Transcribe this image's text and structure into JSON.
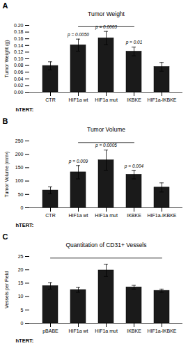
{
  "chart_data": [
    {
      "type": "bar",
      "title": "Tumor Weight",
      "panel_label": "A",
      "ylabel": "Tumor Weight (g)",
      "xlabel": "hTERT:",
      "categories": [
        "CTR",
        "HIF1a wt",
        "HIF1a mut",
        "IKBKE",
        "HIF1a-IKBKE"
      ],
      "values": [
        0.079,
        0.141,
        0.162,
        0.122,
        0.076
      ],
      "errors": [
        0.012,
        0.018,
        0.02,
        0.013,
        0.013
      ],
      "color": "#1a1a1a",
      "ylim": [
        0,
        0.2
      ],
      "yticks": [
        {
          "value": 0.0,
          "label": "0.00"
        },
        {
          "value": 0.02,
          "label": "0.02"
        },
        {
          "value": 0.04,
          "label": "0.04"
        },
        {
          "value": 0.06,
          "label": "0.06"
        },
        {
          "value": 0.08,
          "label": "0.08"
        },
        {
          "value": 0.1,
          "label": "0.10"
        },
        {
          "value": 0.12,
          "label": "0.12"
        },
        {
          "value": 0.14,
          "label": "0.14"
        },
        {
          "value": 0.16,
          "label": "0.16"
        },
        {
          "value": 0.18,
          "label": "0.18"
        },
        {
          "value": 0.2,
          "label": "0.20"
        }
      ],
      "annotations": [
        {
          "text": "p = 0.0050",
          "category": "HIF1a wt",
          "y": 0.165
        },
        {
          "text": "p = 0.0003",
          "category": "HIF1a mut",
          "y": 0.188
        },
        {
          "text": "p = 0.01",
          "category": "IKBKE",
          "y": 0.142
        }
      ],
      "bracket": {
        "x1": "HIF1a wt",
        "x2": "IKBKE",
        "y": 0.196
      }
    },
    {
      "type": "bar",
      "title": "Tumor Volume",
      "panel_label": "B",
      "ylabel": "Tumor Volume (mm³)",
      "xlabel": "hTERT:",
      "categories": [
        "CTR",
        "HIF1a wt",
        "HIF1a mut",
        "IKBKE",
        "HIF1a-IKBKE"
      ],
      "values": [
        65,
        133,
        178,
        124,
        76
      ],
      "errors": [
        13,
        25,
        38,
        16,
        17
      ],
      "color": "#1a1a1a",
      "ylim": [
        0,
        250
      ],
      "yticks": [
        0,
        50,
        100,
        150,
        200,
        250
      ],
      "annotations": [
        {
          "text": "p = 0.009",
          "category": "HIF1a wt",
          "y": 165
        },
        {
          "text": "p = 0.0005",
          "category": "HIF1a mut",
          "y": 224
        },
        {
          "text": "p = 0.004",
          "category": "IKBKE",
          "y": 148
        }
      ],
      "bracket": {
        "x1": "HIF1a wt",
        "x2": "IKBKE",
        "y": 244
      }
    },
    {
      "type": "bar",
      "title": "Quantitation of CD31+ Vessels",
      "panel_label": "C",
      "ylabel": "Vessels per Field",
      "xlabel": "hTERT:",
      "categories": [
        "pBABE",
        "HIF1a wt",
        "HIF1a mut",
        "IKBKE",
        "HIF1a-IKBKE"
      ],
      "values": [
        14.0,
        12.5,
        19.8,
        13.5,
        12.2
      ],
      "errors": [
        1.2,
        0.9,
        2.3,
        0.7,
        0.6
      ],
      "color": "#1a1a1a",
      "ylim": [
        0,
        25
      ],
      "yticks": [
        0,
        5,
        10,
        15,
        20,
        25
      ],
      "bracket": {
        "x1": "pBABE",
        "x2": "HIF1a-IKBKE",
        "y": 24.4
      }
    }
  ]
}
